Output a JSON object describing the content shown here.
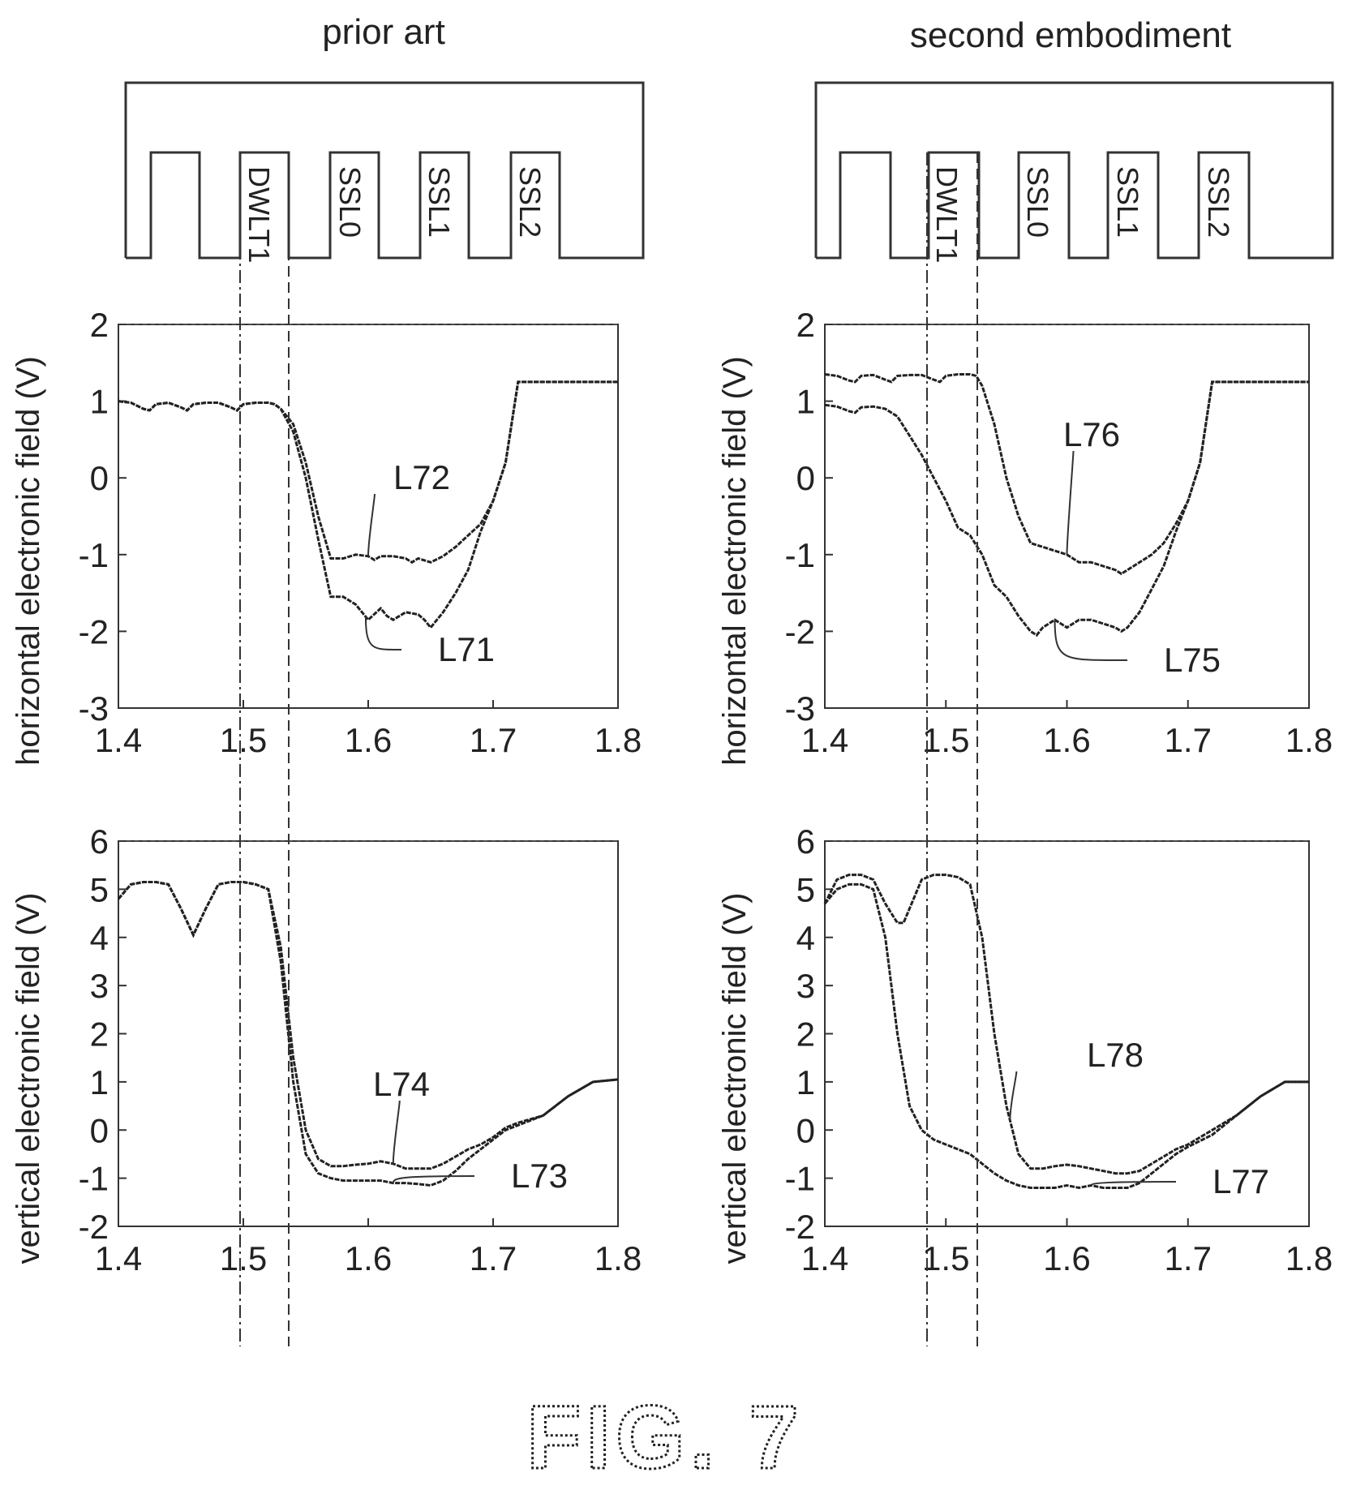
{
  "figure": {
    "caption": "FIG. 7",
    "columns": [
      {
        "title": "prior art",
        "gate_labels": [
          "DWLT1",
          "SSL0",
          "SSL1",
          "SSL2"
        ]
      },
      {
        "title": "second embodiment",
        "gate_labels": [
          "DWLT1",
          "SSL0",
          "SSL1",
          "SSL2"
        ]
      }
    ]
  },
  "chart_data": [
    {
      "type": "line",
      "ylabel": "horizontal electronic field (V)",
      "xlim": [
        1.4,
        1.8
      ],
      "xticks": [
        1.4,
        1.5,
        1.6,
        1.7,
        1.8
      ],
      "ylim": [
        -3,
        2
      ],
      "yticks": [
        -3,
        -2,
        -1,
        0,
        1,
        2
      ],
      "grid": "dashed",
      "series": [
        {
          "name": "L72",
          "x": [
            1.4,
            1.41,
            1.42,
            1.425,
            1.43,
            1.44,
            1.45,
            1.455,
            1.46,
            1.47,
            1.48,
            1.49,
            1.495,
            1.5,
            1.51,
            1.52,
            1.525,
            1.53,
            1.54,
            1.55,
            1.56,
            1.57,
            1.58,
            1.59,
            1.6,
            1.605,
            1.61,
            1.62,
            1.63,
            1.635,
            1.64,
            1.65,
            1.66,
            1.67,
            1.68,
            1.69,
            1.7,
            1.71,
            1.72,
            1.8
          ],
          "y": [
            1.0,
            0.98,
            0.9,
            0.88,
            0.96,
            0.98,
            0.92,
            0.88,
            0.96,
            0.98,
            0.98,
            0.92,
            0.88,
            0.96,
            0.98,
            0.98,
            0.96,
            0.9,
            0.7,
            0.2,
            -0.5,
            -1.05,
            -1.05,
            -1.0,
            -1.02,
            -1.07,
            -1.02,
            -1.02,
            -1.05,
            -1.1,
            -1.05,
            -1.1,
            -1.02,
            -0.9,
            -0.75,
            -0.6,
            -0.3,
            0.2,
            1.25,
            1.25
          ]
        },
        {
          "name": "L71",
          "x": [
            1.4,
            1.41,
            1.42,
            1.425,
            1.43,
            1.44,
            1.45,
            1.455,
            1.46,
            1.47,
            1.48,
            1.49,
            1.495,
            1.5,
            1.51,
            1.52,
            1.525,
            1.53,
            1.54,
            1.55,
            1.56,
            1.57,
            1.575,
            1.58,
            1.59,
            1.6,
            1.61,
            1.615,
            1.62,
            1.63,
            1.64,
            1.645,
            1.65,
            1.66,
            1.67,
            1.68,
            1.69,
            1.7,
            1.71,
            1.72,
            1.8
          ],
          "y": [
            1.0,
            0.98,
            0.9,
            0.88,
            0.96,
            0.98,
            0.92,
            0.88,
            0.96,
            0.98,
            0.98,
            0.92,
            0.88,
            0.96,
            0.98,
            0.98,
            0.96,
            0.9,
            0.6,
            0.0,
            -0.8,
            -1.55,
            -1.55,
            -1.55,
            -1.65,
            -1.85,
            -1.7,
            -1.8,
            -1.85,
            -1.75,
            -1.78,
            -1.85,
            -1.95,
            -1.75,
            -1.5,
            -1.2,
            -0.7,
            -0.3,
            0.2,
            1.25,
            1.25
          ]
        }
      ]
    },
    {
      "type": "line",
      "ylabel": "vertical electronic field (V)",
      "xlim": [
        1.4,
        1.8
      ],
      "xticks": [
        1.4,
        1.5,
        1.6,
        1.7,
        1.8
      ],
      "ylim": [
        -2,
        6
      ],
      "yticks": [
        -2,
        -1,
        0,
        1,
        2,
        3,
        4,
        5,
        6
      ],
      "grid": "dashed",
      "series": [
        {
          "name": "L74",
          "x": [
            1.4,
            1.41,
            1.42,
            1.43,
            1.44,
            1.45,
            1.46,
            1.47,
            1.48,
            1.49,
            1.5,
            1.51,
            1.52,
            1.53,
            1.54,
            1.55,
            1.56,
            1.57,
            1.58,
            1.59,
            1.6,
            1.61,
            1.62,
            1.63,
            1.64,
            1.65,
            1.66,
            1.67,
            1.68,
            1.69,
            1.7,
            1.71,
            1.72,
            1.74,
            1.76,
            1.78,
            1.8
          ],
          "y": [
            4.8,
            5.1,
            5.15,
            5.15,
            5.1,
            4.6,
            4.05,
            4.6,
            5.1,
            5.15,
            5.15,
            5.1,
            5.0,
            3.8,
            1.5,
            0.0,
            -0.6,
            -0.75,
            -0.75,
            -0.72,
            -0.7,
            -0.65,
            -0.7,
            -0.8,
            -0.8,
            -0.8,
            -0.7,
            -0.55,
            -0.4,
            -0.3,
            -0.15,
            0.05,
            0.15,
            0.3,
            0.7,
            1.0,
            1.05
          ]
        },
        {
          "name": "L73",
          "x": [
            1.4,
            1.41,
            1.42,
            1.43,
            1.44,
            1.45,
            1.46,
            1.47,
            1.48,
            1.49,
            1.5,
            1.51,
            1.52,
            1.53,
            1.54,
            1.55,
            1.56,
            1.57,
            1.58,
            1.59,
            1.6,
            1.61,
            1.62,
            1.63,
            1.64,
            1.65,
            1.66,
            1.67,
            1.68,
            1.69,
            1.7,
            1.71,
            1.72,
            1.74,
            1.76,
            1.78,
            1.8
          ],
          "y": [
            4.8,
            5.1,
            5.15,
            5.15,
            5.1,
            4.6,
            4.05,
            4.6,
            5.1,
            5.15,
            5.15,
            5.1,
            5.0,
            3.5,
            1.0,
            -0.5,
            -0.9,
            -1.0,
            -1.05,
            -1.05,
            -1.05,
            -1.05,
            -1.1,
            -1.1,
            -1.12,
            -1.15,
            -1.05,
            -0.85,
            -0.6,
            -0.4,
            -0.2,
            0.0,
            0.1,
            0.3,
            0.7,
            1.0,
            1.05
          ]
        }
      ]
    },
    {
      "type": "line",
      "ylabel": "horizontal electronic field (V)",
      "xlim": [
        1.4,
        1.8
      ],
      "xticks": [
        1.4,
        1.5,
        1.6,
        1.7,
        1.8
      ],
      "ylim": [
        -3,
        2
      ],
      "yticks": [
        -3,
        -2,
        -1,
        0,
        1,
        2
      ],
      "grid": "dashed",
      "series": [
        {
          "name": "L76",
          "x": [
            1.4,
            1.41,
            1.42,
            1.425,
            1.43,
            1.44,
            1.45,
            1.455,
            1.46,
            1.47,
            1.48,
            1.49,
            1.495,
            1.5,
            1.51,
            1.52,
            1.525,
            1.53,
            1.54,
            1.55,
            1.56,
            1.57,
            1.58,
            1.59,
            1.6,
            1.61,
            1.62,
            1.63,
            1.64,
            1.645,
            1.65,
            1.66,
            1.67,
            1.68,
            1.69,
            1.7,
            1.71,
            1.72,
            1.8
          ],
          "y": [
            1.35,
            1.33,
            1.27,
            1.25,
            1.33,
            1.34,
            1.28,
            1.25,
            1.33,
            1.34,
            1.34,
            1.28,
            1.25,
            1.33,
            1.35,
            1.35,
            1.33,
            1.2,
            0.7,
            0.0,
            -0.5,
            -0.85,
            -0.9,
            -0.95,
            -1.0,
            -1.1,
            -1.1,
            -1.15,
            -1.2,
            -1.25,
            -1.2,
            -1.1,
            -1.0,
            -0.85,
            -0.6,
            -0.3,
            0.2,
            1.25,
            1.25
          ]
        },
        {
          "name": "L75",
          "x": [
            1.4,
            1.41,
            1.42,
            1.425,
            1.43,
            1.44,
            1.45,
            1.46,
            1.47,
            1.48,
            1.49,
            1.5,
            1.51,
            1.52,
            1.53,
            1.54,
            1.55,
            1.56,
            1.57,
            1.575,
            1.58,
            1.59,
            1.6,
            1.61,
            1.62,
            1.63,
            1.64,
            1.645,
            1.65,
            1.66,
            1.67,
            1.68,
            1.69,
            1.7,
            1.71,
            1.72,
            1.8
          ],
          "y": [
            0.95,
            0.93,
            0.87,
            0.85,
            0.92,
            0.93,
            0.9,
            0.8,
            0.55,
            0.3,
            0.0,
            -0.3,
            -0.65,
            -0.75,
            -1.0,
            -1.4,
            -1.55,
            -1.8,
            -2.0,
            -2.05,
            -1.95,
            -1.85,
            -1.95,
            -1.85,
            -1.85,
            -1.9,
            -1.95,
            -2.0,
            -1.95,
            -1.75,
            -1.45,
            -1.15,
            -0.7,
            -0.3,
            0.2,
            1.25,
            1.25
          ]
        }
      ]
    },
    {
      "type": "line",
      "ylabel": "vertical electronic field (V)",
      "xlim": [
        1.4,
        1.8
      ],
      "xticks": [
        1.4,
        1.5,
        1.6,
        1.7,
        1.8
      ],
      "ylim": [
        -2,
        6
      ],
      "yticks": [
        -2,
        -1,
        0,
        1,
        2,
        3,
        4,
        5,
        6
      ],
      "grid": "dashed",
      "series": [
        {
          "name": "L78",
          "x": [
            1.4,
            1.41,
            1.42,
            1.43,
            1.44,
            1.45,
            1.46,
            1.465,
            1.47,
            1.48,
            1.49,
            1.5,
            1.51,
            1.52,
            1.53,
            1.54,
            1.55,
            1.56,
            1.57,
            1.58,
            1.59,
            1.6,
            1.61,
            1.62,
            1.63,
            1.64,
            1.65,
            1.66,
            1.67,
            1.68,
            1.69,
            1.7,
            1.72,
            1.74,
            1.76,
            1.78,
            1.8
          ],
          "y": [
            4.7,
            5.2,
            5.3,
            5.3,
            5.2,
            4.7,
            4.3,
            4.3,
            4.6,
            5.2,
            5.3,
            5.3,
            5.25,
            5.1,
            4.0,
            2.0,
            0.5,
            -0.5,
            -0.8,
            -0.8,
            -0.75,
            -0.72,
            -0.75,
            -0.8,
            -0.85,
            -0.9,
            -0.9,
            -0.85,
            -0.7,
            -0.55,
            -0.4,
            -0.3,
            0.0,
            0.3,
            0.7,
            1.0,
            1.0
          ]
        },
        {
          "name": "L77",
          "x": [
            1.4,
            1.41,
            1.42,
            1.43,
            1.44,
            1.45,
            1.46,
            1.47,
            1.48,
            1.49,
            1.5,
            1.51,
            1.52,
            1.53,
            1.54,
            1.55,
            1.56,
            1.57,
            1.58,
            1.59,
            1.6,
            1.61,
            1.62,
            1.63,
            1.64,
            1.65,
            1.66,
            1.67,
            1.68,
            1.69,
            1.7,
            1.72,
            1.74,
            1.76,
            1.78,
            1.8
          ],
          "y": [
            4.7,
            5.0,
            5.1,
            5.1,
            5.0,
            4.0,
            2.0,
            0.5,
            0.0,
            -0.2,
            -0.3,
            -0.4,
            -0.5,
            -0.7,
            -0.9,
            -1.05,
            -1.15,
            -1.2,
            -1.2,
            -1.2,
            -1.15,
            -1.2,
            -1.15,
            -1.2,
            -1.2,
            -1.2,
            -1.1,
            -0.9,
            -0.7,
            -0.5,
            -0.35,
            -0.1,
            0.3,
            0.7,
            1.0,
            1.0
          ]
        }
      ]
    }
  ]
}
